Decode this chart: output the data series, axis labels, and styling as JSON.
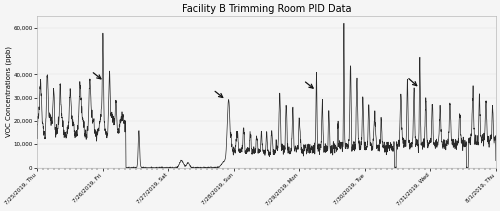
{
  "title": "Facility B Trimming Room PID Data",
  "ylabel": "VOC Concentrations (ppb)",
  "ylim": [
    0,
    65000
  ],
  "yticks": [
    0,
    10000,
    20000,
    30000,
    40000,
    60000
  ],
  "ytick_labels": [
    "0",
    "10,000",
    "20,000",
    "30,000",
    "40,000",
    "60,000"
  ],
  "line_color": "#2a2a2a",
  "line_width": 0.5,
  "background_color": "#f5f5f5",
  "grid_color": "#dddddd",
  "title_fontsize": 7,
  "axis_label_fontsize": 5,
  "tick_fontsize": 4,
  "arrow_color": "#111111",
  "n_points": 4032,
  "xtick_dates": [
    "7/25/2019, Thu",
    "7/26/2019, Fri",
    "7/27/2019, Sat",
    "7/28/2019, Sun",
    "7/29/2019, Mon",
    "7/30/2019, Tue",
    "7/31/2019, Wed",
    "8/1/2019, Thu"
  ],
  "arrows": [
    {
      "xt": 1.02,
      "yt": 37000,
      "xta": 0.82,
      "yta": 41500
    },
    {
      "xt": 2.88,
      "yt": 29000,
      "xta": 2.68,
      "yta": 33500
    },
    {
      "xt": 4.26,
      "yt": 33000,
      "xta": 4.06,
      "yta": 37500
    },
    {
      "xt": 5.84,
      "yt": 34000,
      "xta": 5.64,
      "yta": 39000
    }
  ]
}
